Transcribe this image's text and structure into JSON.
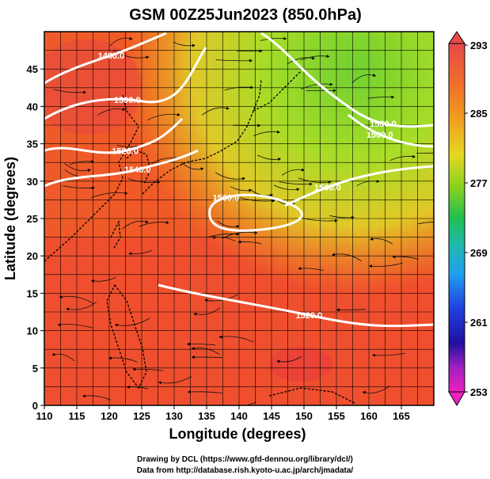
{
  "chart_data": {
    "type": "heatmap",
    "title": "GSM 00Z25Jun2023 (850.0hPa)",
    "xlabel": "Longitude (degrees)",
    "ylabel": "Latitude  (degrees)",
    "xlim": [
      110,
      170
    ],
    "ylim": [
      0,
      50
    ],
    "x_ticks": [
      "110",
      "115",
      "120",
      "125",
      "130",
      "135",
      "140",
      "145",
      "150",
      "155",
      "160",
      "165"
    ],
    "y_ticks": [
      "0",
      "5",
      "10",
      "15",
      "20",
      "25",
      "30",
      "35",
      "40",
      "45"
    ],
    "grid": true,
    "colorbar": {
      "labels": [
        "293",
        "285",
        "277",
        "269",
        "261",
        "253"
      ],
      "min": 253,
      "max": 293,
      "placement": "right"
    },
    "field_description": "temperature shading with wind streamlines and geopotential height contours",
    "contours": [
      {
        "label": "1480.0",
        "value": 1480
      },
      {
        "label": "1500.0",
        "value": 1500
      },
      {
        "label": "1520.0",
        "value": 1520
      },
      {
        "label": "1540.0",
        "value": 1540
      },
      {
        "label": "1560.0",
        "value": 1560
      },
      {
        "label": "1500.0",
        "value": 1500
      },
      {
        "label": "1560.0",
        "value": 1560
      },
      {
        "label": "1560.0",
        "value": 1560
      },
      {
        "label": "1520.0",
        "value": 1520
      }
    ],
    "colors": {
      "warm": "#f05a2a",
      "hot": "#e83a3a",
      "orange": "#f2a020",
      "yellow": "#e0e020",
      "green": "#7ad02a",
      "contour": "#ffffff"
    }
  },
  "credits": {
    "line1": "Drawing by DCL (https://www.gfd-dennou.org/library/dcl/)",
    "line2": "Data from http://database.rish.kyoto-u.ac.jp/arch/jmadata/"
  }
}
